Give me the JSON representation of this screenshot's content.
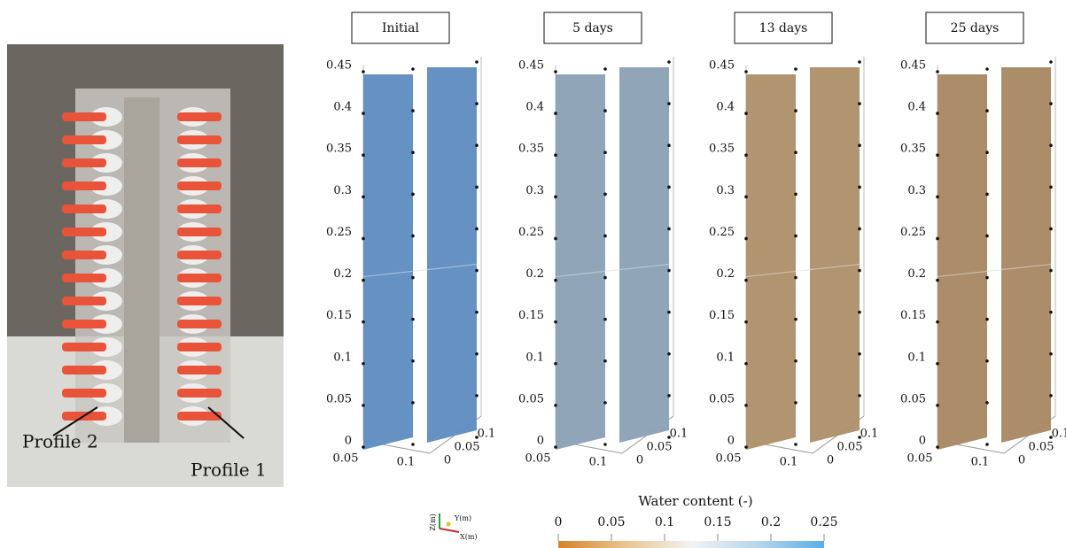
{
  "photo": {
    "labels": [
      "Profile 2",
      "Profile 1"
    ]
  },
  "panels": [
    {
      "title": "Initial",
      "color": "#5d8cbf"
    },
    {
      "title": "5 days",
      "color": "#8aa0b4"
    },
    {
      "title": "13 days",
      "color": "#ad8f68"
    },
    {
      "title": "25 days",
      "color": "#a88761"
    }
  ],
  "z_ticks": [
    0,
    0.05,
    0.1,
    0.15,
    0.2,
    0.25,
    0.3,
    0.35,
    0.4,
    0.45
  ],
  "x_ticks": [
    0.05,
    0.1
  ],
  "y_ticks": [
    0,
    0.05,
    0.1
  ],
  "colorbar": {
    "title": "Water content (-)",
    "ticks": [
      0,
      0.05,
      0.1,
      0.15,
      0.2,
      0.25
    ],
    "colors": [
      "#d6832a",
      "#e8c48e",
      "#f2f2f2",
      "#b8d6ec",
      "#5aaee6"
    ]
  },
  "triad": {
    "z": "Z(m)",
    "y": "Y(m)",
    "x": "X(m)"
  }
}
